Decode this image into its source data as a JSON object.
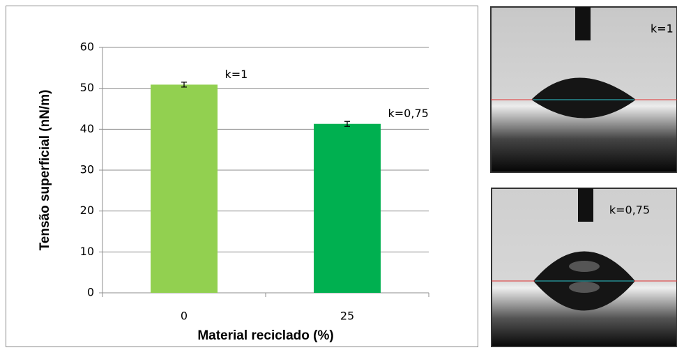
{
  "chart_data": {
    "type": "bar",
    "x_label": "Material reciclado (%)",
    "y_label": "Tensão superficial (nN/m)",
    "categories": [
      "0",
      "25"
    ],
    "values": [
      50.9,
      41.3
    ],
    "errors": [
      0.6,
      0.6
    ],
    "colors": [
      "#92d050",
      "#00b050"
    ],
    "annotations": [
      "k=1",
      "k=0,75"
    ],
    "ylim": [
      0,
      60
    ],
    "yticks": [
      0,
      10,
      20,
      30,
      40,
      50,
      60
    ],
    "grid": true
  },
  "photos": [
    {
      "label": "k=1"
    },
    {
      "label": "k=0,75"
    }
  ]
}
